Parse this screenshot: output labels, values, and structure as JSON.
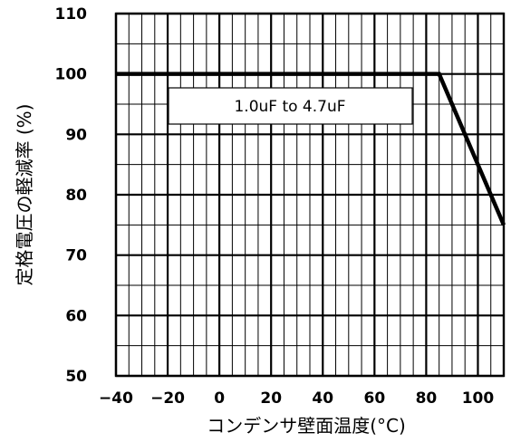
{
  "chart_data": {
    "type": "line",
    "xlabel": "コンデンサ壁面温度(°C)",
    "ylabel": "定格電圧の軽減率 (%)",
    "xlim": [
      -40,
      110
    ],
    "ylim": [
      50,
      110
    ],
    "x_ticks": [
      "−40",
      "−20",
      "0",
      "20",
      "40",
      "60",
      "80",
      "100"
    ],
    "x_tick_values": [
      -40,
      -20,
      0,
      20,
      40,
      60,
      80,
      100
    ],
    "y_ticks": [
      "50",
      "60",
      "70",
      "80",
      "90",
      "100",
      "110"
    ],
    "y_tick_values": [
      50,
      60,
      70,
      80,
      90,
      100,
      110
    ],
    "x_minor_step": 5,
    "y_minor_step": 5,
    "grid": true,
    "series": [
      {
        "x": [
          -40,
          85,
          110
        ],
        "y": [
          100,
          100,
          75
        ],
        "color": "#000000"
      }
    ],
    "annotations": [
      {
        "text": "1.0uF to 4.7uF"
      }
    ]
  }
}
